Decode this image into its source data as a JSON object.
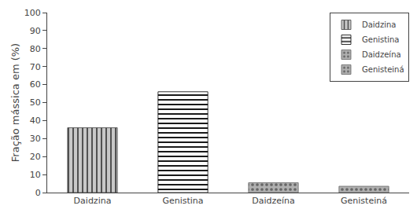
{
  "chart_data": {
    "type": "bar",
    "categories": [
      "Daidzina",
      "Genistina",
      "Daidzeína",
      "Genisteiná"
    ],
    "values": [
      36.0,
      56.0,
      5.5,
      3.5
    ],
    "ylabel": "Fração mássica em (%)",
    "ylim": [
      0,
      100
    ],
    "yticks": [
      0,
      10,
      20,
      30,
      40,
      50,
      60,
      70,
      80,
      90,
      100
    ],
    "colors": [
      "#c8c8c8",
      "#ffffff",
      "#b0b0b0",
      "#b0b0b0"
    ],
    "legend": "upper right",
    "grid": false
  }
}
